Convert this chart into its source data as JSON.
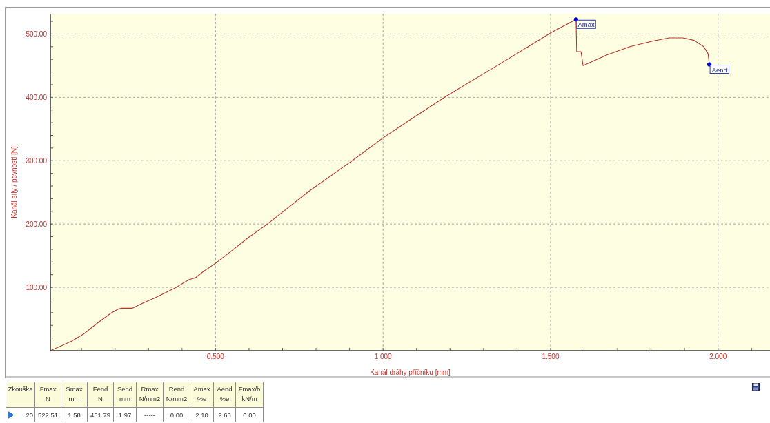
{
  "chart_data": {
    "type": "line",
    "xlabel": "Kanál dráhy příčníku [mm]",
    "ylabel": "Kanál síly / pevnosti [N]",
    "series": [
      {
        "color": "#b5332b",
        "x": [
          0.007,
          0.07,
          0.108,
          0.146,
          0.187,
          0.211,
          0.221,
          0.251,
          0.283,
          0.317,
          0.352,
          0.379,
          0.42,
          0.44,
          0.461,
          0.5,
          0.551,
          0.599,
          0.655,
          0.777,
          0.908,
          1.0,
          1.079,
          1.189,
          1.34,
          1.43,
          1.501,
          1.576,
          1.578,
          1.591,
          1.597,
          1.668,
          1.737,
          1.806,
          1.854,
          1.895,
          1.929,
          1.957,
          1.97,
          1.974
        ],
        "values": [
          0,
          15,
          27,
          43,
          59,
          66,
          67,
          67,
          75,
          83,
          92,
          99,
          112,
          115,
          124,
          138,
          159,
          179,
          200,
          251,
          300,
          336,
          364,
          402,
          450,
          479,
          502,
          523,
          472,
          472,
          450,
          467,
          480,
          489,
          494,
          494,
          490,
          480,
          469,
          452
        ]
      },
      {
        "type": "scatter",
        "marker": "circle",
        "color": "#0000cc",
        "x": [
          1.576,
          1.974
        ],
        "values": [
          523,
          452
        ]
      }
    ],
    "xlim": [
      0.007,
      2.155
    ],
    "ylim": [
      0,
      532
    ],
    "xticks": [
      {
        "value": 0.1,
        "label": null
      },
      {
        "value": 0.2,
        "label": null
      },
      {
        "value": 0.3,
        "label": null
      },
      {
        "value": 0.4,
        "label": null
      },
      {
        "value": 0.5,
        "label": "0.500"
      },
      {
        "value": 0.6,
        "label": null
      },
      {
        "value": 0.7,
        "label": null
      },
      {
        "value": 0.8,
        "label": null
      },
      {
        "value": 0.9,
        "label": null
      },
      {
        "value": 1.0,
        "label": "1.000"
      },
      {
        "value": 1.1,
        "label": null
      },
      {
        "value": 1.2,
        "label": null
      },
      {
        "value": 1.3,
        "label": null
      },
      {
        "value": 1.4,
        "label": null
      },
      {
        "value": 1.5,
        "label": "1.500"
      },
      {
        "value": 1.6,
        "label": null
      },
      {
        "value": 1.7,
        "label": null
      },
      {
        "value": 1.8,
        "label": null
      },
      {
        "value": 1.9,
        "label": null
      },
      {
        "value": 2.0,
        "label": "2.000"
      },
      {
        "value": 2.1,
        "label": null
      }
    ],
    "yticks": [
      {
        "value": 20,
        "label": null
      },
      {
        "value": 40,
        "label": null
      },
      {
        "value": 60,
        "label": null
      },
      {
        "value": 80,
        "label": null
      },
      {
        "value": 100,
        "label": "100.00"
      },
      {
        "value": 120,
        "label": null
      },
      {
        "value": 140,
        "label": null
      },
      {
        "value": 160,
        "label": null
      },
      {
        "value": 180,
        "label": null
      },
      {
        "value": 200,
        "label": "200.00"
      },
      {
        "value": 220,
        "label": null
      },
      {
        "value": 240,
        "label": null
      },
      {
        "value": 260,
        "label": null
      },
      {
        "value": 280,
        "label": null
      },
      {
        "value": 300,
        "label": "300.00"
      },
      {
        "value": 320,
        "label": null
      },
      {
        "value": 340,
        "label": null
      },
      {
        "value": 360,
        "label": null
      },
      {
        "value": 380,
        "label": null
      },
      {
        "value": 400,
        "label": "400.00"
      },
      {
        "value": 420,
        "label": null
      },
      {
        "value": 440,
        "label": null
      },
      {
        "value": 460,
        "label": null
      },
      {
        "value": 480,
        "label": null
      },
      {
        "value": 500,
        "label": "500.00"
      },
      {
        "value": 520,
        "label": null
      }
    ],
    "grid": true,
    "annotations": [
      {
        "text": "Amax",
        "x": 1.576,
        "y": 523
      },
      {
        "text": "Aend",
        "x": 1.974,
        "y": 452
      },
      "Zkouška",
      "Fmax\nN",
      "Smax\nmm",
      "Fend\nN",
      "Send\nmm",
      "Rmax\nN/mm2",
      "Rend\nN/mm2",
      "Amax\n%e",
      "Aend\n%e",
      "Fmax/b\nkN/m",
      "20",
      "522.51",
      "1.58",
      "451.79",
      "1.97",
      "-----",
      "0.00",
      "2.10",
      "2.63",
      "0.00"
    ]
  }
}
